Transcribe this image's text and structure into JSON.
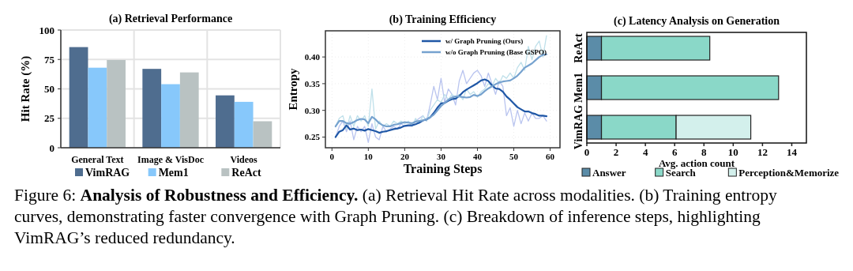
{
  "chart_data": [
    {
      "type": "bar",
      "title": "(a) Retrieval Performance",
      "ylabel": "Hit Rate (%)",
      "categories": [
        "General Text",
        "Image & VisDoc",
        "Videos"
      ],
      "series": [
        {
          "name": "VimRAG",
          "color": "#4f6d8f",
          "values": [
            85.5,
            67,
            44.5
          ]
        },
        {
          "name": "Mem1",
          "color": "#87c8fb",
          "values": [
            68,
            54,
            39
          ]
        },
        {
          "name": "ReAct",
          "color": "#b9c2c2",
          "values": [
            74.5,
            64,
            22.5
          ]
        }
      ],
      "ylim": [
        0,
        100
      ],
      "yticks": [
        0,
        25,
        50,
        75,
        100
      ],
      "grid": true,
      "legend": "bottom",
      "annotations": [
        "Figure 6:",
        "Analysis of Robustness and Efficiency.",
        "(a) Retrieval Hit Rate across modalities. (b) Training entropy curves, demonstrating faster convergence with Graph Pruning. (c) Breakdown of inference steps, highlighting VimRAG’s reduced redundancy."
      ]
    },
    {
      "type": "line",
      "title": "(b) Training Efficiency",
      "xlabel": "Training Steps",
      "ylabel": "Entropy",
      "x": [
        1,
        2,
        3,
        4,
        5,
        6,
        7,
        8,
        9,
        10,
        11,
        12,
        13,
        14,
        15,
        16,
        17,
        18,
        19,
        20,
        21,
        22,
        23,
        24,
        25,
        26,
        27,
        28,
        29,
        30,
        31,
        32,
        33,
        34,
        35,
        36,
        37,
        38,
        39,
        40,
        41,
        42,
        43,
        44,
        45,
        46,
        47,
        48,
        49,
        50,
        51,
        52,
        53,
        54,
        55,
        56,
        57,
        58,
        59
      ],
      "series": [
        {
          "color": "#b9c4ef",
          "values": [
            0.25,
            0.27,
            0.28,
            0.26,
            0.28,
            0.245,
            0.27,
            0.26,
            0.27,
            0.24,
            0.275,
            0.25,
            0.245,
            0.27,
            0.26,
            0.265,
            0.27,
            0.265,
            0.275,
            0.27,
            0.27,
            0.27,
            0.28,
            0.285,
            0.29,
            0.28,
            0.31,
            0.345,
            0.32,
            0.36,
            0.315,
            0.34,
            0.33,
            0.31,
            0.355,
            0.375,
            0.35,
            0.36,
            0.37,
            0.375,
            0.365,
            0.345,
            0.37,
            0.35,
            0.33,
            0.355,
            0.345,
            0.29,
            0.305,
            0.27,
            0.3,
            0.275,
            0.295,
            0.28,
            0.295,
            0.285,
            0.285,
            0.29,
            0.28
          ]
        },
        {
          "color": "#bfe0ea",
          "values": [
            0.27,
            0.285,
            0.29,
            0.265,
            0.29,
            0.27,
            0.29,
            0.28,
            0.29,
            0.27,
            0.34,
            0.265,
            0.28,
            0.27,
            0.275,
            0.27,
            0.28,
            0.275,
            0.28,
            0.275,
            0.28,
            0.27,
            0.285,
            0.275,
            0.29,
            0.28,
            0.3,
            0.31,
            0.32,
            0.315,
            0.33,
            0.32,
            0.33,
            0.325,
            0.33,
            0.32,
            0.34,
            0.33,
            0.335,
            0.325,
            0.335,
            0.34,
            0.35,
            0.345,
            0.36,
            0.35,
            0.365,
            0.36,
            0.37,
            0.36,
            0.38,
            0.39,
            0.375,
            0.42,
            0.395,
            0.42,
            0.43,
            0.4,
            0.44
          ]
        },
        {
          "name": "w/ Graph Pruning (Ours)",
          "color": "#1f57a6",
          "values": [
            0.25,
            0.26,
            0.263,
            0.272,
            0.264,
            0.266,
            0.263,
            0.264,
            0.262,
            0.265,
            0.263,
            0.261,
            0.258,
            0.26,
            0.261,
            0.263,
            0.265,
            0.266,
            0.268,
            0.271,
            0.272,
            0.272,
            0.274,
            0.277,
            0.281,
            0.283,
            0.287,
            0.295,
            0.305,
            0.313,
            0.314,
            0.318,
            0.321,
            0.322,
            0.327,
            0.334,
            0.339,
            0.343,
            0.347,
            0.351,
            0.356,
            0.358,
            0.355,
            0.347,
            0.341,
            0.34,
            0.335,
            0.326,
            0.32,
            0.313,
            0.306,
            0.302,
            0.298,
            0.298,
            0.295,
            0.293,
            0.29,
            0.29,
            0.289
          ]
        },
        {
          "name": "w/o Graph Pruning (Base GSPO)",
          "color": "#76a2cf",
          "values": [
            0.27,
            0.28,
            0.28,
            0.276,
            0.275,
            0.278,
            0.282,
            0.284,
            0.283,
            0.276,
            0.288,
            0.283,
            0.276,
            0.272,
            0.27,
            0.27,
            0.273,
            0.274,
            0.276,
            0.278,
            0.277,
            0.276,
            0.279,
            0.28,
            0.281,
            0.283,
            0.287,
            0.292,
            0.3,
            0.308,
            0.314,
            0.32,
            0.324,
            0.326,
            0.326,
            0.325,
            0.324,
            0.325,
            0.329,
            0.327,
            0.33,
            0.336,
            0.341,
            0.345,
            0.349,
            0.352,
            0.354,
            0.355,
            0.356,
            0.36,
            0.365,
            0.372,
            0.38,
            0.384,
            0.388,
            0.394,
            0.4,
            0.404,
            0.405
          ]
        }
      ],
      "xlim": [
        -1.8,
        62.7
      ],
      "xticks": [
        0,
        10,
        20,
        30,
        40,
        50,
        60
      ],
      "ylim": [
        0.23,
        0.449
      ],
      "yticks": [
        {
          "value": 0.25,
          "label": "0.25"
        },
        {
          "value": 0.3,
          "label": "0.30"
        },
        {
          "value": 0.35,
          "label": "0.35"
        },
        {
          "value": 0.4,
          "label": "0.40"
        }
      ],
      "grid": true,
      "legend": "top right"
    },
    {
      "type": "bar",
      "orientation": "horizontal",
      "stacked": true,
      "title": "(c) Latency Analysis on Generation",
      "xlabel": "Avg. action count",
      "categories": [
        "ReAct",
        "Mem1",
        "VimRAG"
      ],
      "series": [
        {
          "name": "Answer",
          "color": "#5b8ca8",
          "values": [
            1,
            1,
            1
          ]
        },
        {
          "name": "Search",
          "color": "#8ad8c8",
          "values": [
            7.4,
            12.1,
            5.1
          ]
        },
        {
          "name": "Perception&Memorize",
          "color": "#d3f0ec",
          "values": [
            null,
            null,
            5.1
          ]
        }
      ],
      "xlim": [
        0,
        15
      ],
      "xticks": [
        0,
        2,
        4,
        6,
        8,
        10,
        12,
        14
      ],
      "legend": "bottom"
    }
  ]
}
